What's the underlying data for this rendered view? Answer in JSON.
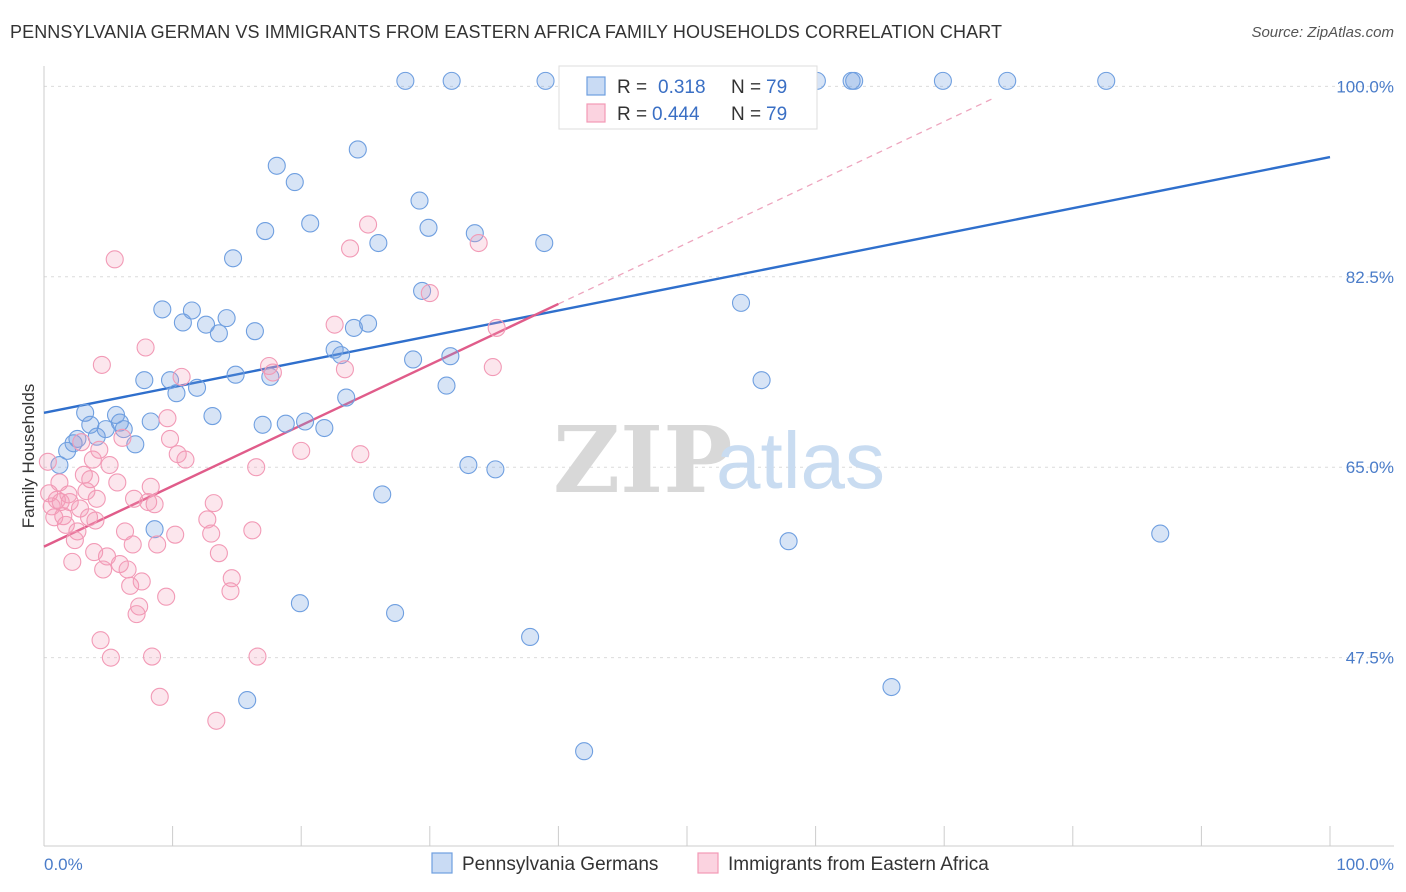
{
  "title": "PENNSYLVANIA GERMAN VS IMMIGRANTS FROM EASTERN AFRICA FAMILY HOUSEHOLDS CORRELATION CHART",
  "source": "Source: ZipAtlas.com",
  "watermark": {
    "zip": "ZIP",
    "atlas": "atlas"
  },
  "chart_data": {
    "type": "scatter",
    "ylabel": "Family Households",
    "xlim": [
      0,
      100
    ],
    "ylim": [
      33.5,
      101.5
    ],
    "x_tick_labels": [
      {
        "value": 0,
        "label": "0.0%"
      },
      {
        "value": 100,
        "label": "100.0%"
      }
    ],
    "y_tick_labels": [
      {
        "value": 100.0,
        "label": "100.0%"
      },
      {
        "value": 82.5,
        "label": "82.5%"
      },
      {
        "value": 65.0,
        "label": "65.0%"
      },
      {
        "value": 47.5,
        "label": "47.5%"
      }
    ],
    "grid": true,
    "legend": {
      "placement": "top-center",
      "rows": [
        {
          "r_label": "R =",
          "r_value": "0.318",
          "n_label": "N =",
          "n_value": "79"
        },
        {
          "r_label": "R =",
          "r_value": "0.444",
          "n_label": "N =",
          "n_value": "79"
        }
      ]
    },
    "series": [
      {
        "name": "Pennsylvania Germans",
        "color": "#6f9fe0",
        "line_color": "#2f6fcc",
        "trend": {
          "x": [
            0,
            100
          ],
          "y": [
            70.0,
            93.5
          ]
        },
        "points": [
          [
            1.2,
            65.2
          ],
          [
            1.8,
            66.5
          ],
          [
            2.3,
            67.2
          ],
          [
            2.6,
            67.6
          ],
          [
            3.2,
            70.0
          ],
          [
            3.6,
            68.9
          ],
          [
            4.1,
            67.8
          ],
          [
            4.8,
            68.5
          ],
          [
            5.6,
            69.8
          ],
          [
            5.9,
            69.1
          ],
          [
            6.2,
            68.5
          ],
          [
            7.1,
            67.1
          ],
          [
            7.8,
            73.0
          ],
          [
            8.3,
            69.2
          ],
          [
            8.6,
            59.3
          ],
          [
            9.2,
            79.5
          ],
          [
            9.8,
            73.0
          ],
          [
            10.3,
            71.8
          ],
          [
            10.8,
            78.3
          ],
          [
            11.5,
            79.4
          ],
          [
            11.9,
            72.3
          ],
          [
            12.6,
            78.1
          ],
          [
            13.1,
            69.7
          ],
          [
            13.6,
            77.3
          ],
          [
            14.2,
            78.7
          ],
          [
            14.7,
            84.2
          ],
          [
            14.9,
            73.5
          ],
          [
            15.8,
            43.6
          ],
          [
            16.4,
            77.5
          ],
          [
            17.0,
            68.9
          ],
          [
            17.2,
            86.7
          ],
          [
            17.6,
            73.3
          ],
          [
            18.1,
            92.7
          ],
          [
            18.8,
            69.0
          ],
          [
            19.5,
            91.2
          ],
          [
            19.9,
            52.5
          ],
          [
            20.3,
            69.2
          ],
          [
            20.7,
            87.4
          ],
          [
            21.8,
            68.6
          ],
          [
            22.6,
            75.8
          ],
          [
            23.1,
            75.3
          ],
          [
            23.5,
            71.4
          ],
          [
            24.1,
            77.8
          ],
          [
            24.4,
            94.2
          ],
          [
            25.2,
            78.2
          ],
          [
            26.0,
            85.6
          ],
          [
            26.3,
            62.5
          ],
          [
            27.3,
            51.6
          ],
          [
            28.1,
            100.5
          ],
          [
            28.7,
            74.9
          ],
          [
            29.2,
            89.5
          ],
          [
            29.4,
            81.2
          ],
          [
            29.9,
            87.0
          ],
          [
            31.3,
            72.5
          ],
          [
            31.6,
            75.2
          ],
          [
            31.7,
            100.5
          ],
          [
            33.0,
            65.2
          ],
          [
            33.5,
            86.5
          ],
          [
            35.1,
            64.8
          ],
          [
            37.8,
            49.4
          ],
          [
            38.9,
            85.6
          ],
          [
            39.0,
            100.5
          ],
          [
            42.0,
            38.9
          ],
          [
            45.0,
            100.5
          ],
          [
            48.0,
            100.5
          ],
          [
            50.0,
            100.5
          ],
          [
            54.2,
            100.5
          ],
          [
            54.2,
            80.1
          ],
          [
            55.8,
            100.5
          ],
          [
            55.8,
            73.0
          ],
          [
            57.9,
            58.2
          ],
          [
            60.1,
            100.5
          ],
          [
            62.8,
            100.5
          ],
          [
            63.0,
            100.5
          ],
          [
            65.9,
            44.8
          ],
          [
            69.9,
            100.5
          ],
          [
            74.9,
            100.5
          ],
          [
            82.6,
            100.5
          ],
          [
            86.8,
            58.9
          ]
        ]
      },
      {
        "name": "Immigrants from Eastern Africa",
        "color": "#f29ab6",
        "line_color": "#e05c8a",
        "trend": {
          "x": [
            0,
            40
          ],
          "y": [
            57.7,
            80.0
          ]
        },
        "dashed_extension": {
          "x": [
            40,
            74
          ],
          "y": [
            80.0,
            99.0
          ]
        },
        "points": [
          [
            0.3,
            65.5
          ],
          [
            0.4,
            62.6
          ],
          [
            0.6,
            61.4
          ],
          [
            0.8,
            60.4
          ],
          [
            1.0,
            62.0
          ],
          [
            1.2,
            63.6
          ],
          [
            1.3,
            61.8
          ],
          [
            1.5,
            60.5
          ],
          [
            1.7,
            59.7
          ],
          [
            1.9,
            62.5
          ],
          [
            2.0,
            61.8
          ],
          [
            2.2,
            56.3
          ],
          [
            2.4,
            58.3
          ],
          [
            2.6,
            59.1
          ],
          [
            2.8,
            61.2
          ],
          [
            2.9,
            67.3
          ],
          [
            3.1,
            64.3
          ],
          [
            3.3,
            62.8
          ],
          [
            3.5,
            60.4
          ],
          [
            3.6,
            63.9
          ],
          [
            3.8,
            65.7
          ],
          [
            3.9,
            57.2
          ],
          [
            4.0,
            60.1
          ],
          [
            4.1,
            62.1
          ],
          [
            4.3,
            66.6
          ],
          [
            4.4,
            49.1
          ],
          [
            4.5,
            74.4
          ],
          [
            4.6,
            55.6
          ],
          [
            4.9,
            56.8
          ],
          [
            5.1,
            65.2
          ],
          [
            5.2,
            47.5
          ],
          [
            5.5,
            84.1
          ],
          [
            5.7,
            63.6
          ],
          [
            5.9,
            56.1
          ],
          [
            6.1,
            67.7
          ],
          [
            6.3,
            59.1
          ],
          [
            6.5,
            55.6
          ],
          [
            6.7,
            54.1
          ],
          [
            6.9,
            57.9
          ],
          [
            7.0,
            62.1
          ],
          [
            7.2,
            51.5
          ],
          [
            7.4,
            52.2
          ],
          [
            7.6,
            54.5
          ],
          [
            7.9,
            76.0
          ],
          [
            8.1,
            61.8
          ],
          [
            8.3,
            63.2
          ],
          [
            8.4,
            47.6
          ],
          [
            8.6,
            61.6
          ],
          [
            8.8,
            57.9
          ],
          [
            9.0,
            43.9
          ],
          [
            9.5,
            53.1
          ],
          [
            9.6,
            69.5
          ],
          [
            9.8,
            67.6
          ],
          [
            10.2,
            58.8
          ],
          [
            10.4,
            66.2
          ],
          [
            10.7,
            73.3
          ],
          [
            11.0,
            65.7
          ],
          [
            12.7,
            60.2
          ],
          [
            13.0,
            58.9
          ],
          [
            13.2,
            61.7
          ],
          [
            13.4,
            41.7
          ],
          [
            13.6,
            57.1
          ],
          [
            14.5,
            53.6
          ],
          [
            14.6,
            54.8
          ],
          [
            16.2,
            59.2
          ],
          [
            16.5,
            65.0
          ],
          [
            16.6,
            47.6
          ],
          [
            17.5,
            74.3
          ],
          [
            17.8,
            73.7
          ],
          [
            20.0,
            66.5
          ],
          [
            22.6,
            78.1
          ],
          [
            23.4,
            74.0
          ],
          [
            23.8,
            85.1
          ],
          [
            24.6,
            66.2
          ],
          [
            25.2,
            87.3
          ],
          [
            30.0,
            81.0
          ],
          [
            33.8,
            85.6
          ],
          [
            35.2,
            77.8
          ],
          [
            34.9,
            74.2
          ]
        ]
      }
    ]
  }
}
